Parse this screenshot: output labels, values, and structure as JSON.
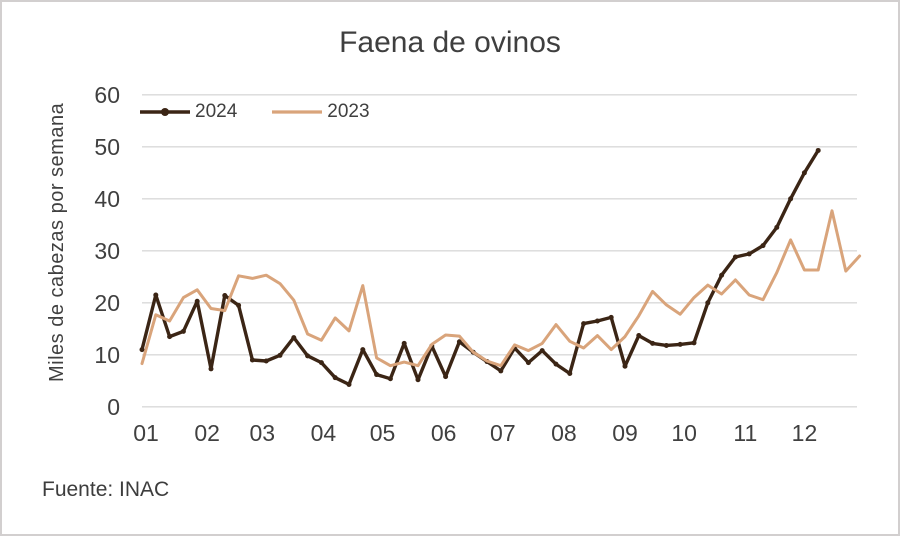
{
  "page": {
    "title": "Faena de ovinos",
    "source": "Fuente: INAC"
  },
  "axes": {
    "y_label": "Miles de cabezas por semana",
    "y_ticks": [
      "60",
      "50",
      "40",
      "30",
      "20",
      "10",
      "0"
    ],
    "x_ticks": [
      "01",
      "02",
      "03",
      "04",
      "05",
      "06",
      "07",
      "08",
      "09",
      "10",
      "11",
      "12"
    ]
  },
  "legend": {
    "items": [
      {
        "label": "2024"
      },
      {
        "label": "2023"
      }
    ]
  },
  "colors": {
    "series_2024": "#3b2515",
    "series_2023": "#d9a47b",
    "gridline": "#d9d9d9",
    "text": "#404040",
    "border": "#d2cfcf"
  },
  "chart_data": {
    "type": "line",
    "title": "Faena de ovinos",
    "ylabel": "Miles de cabezas por semana",
    "xlabel": "",
    "x_unit": "weeks of the year, x axis labeled by month 01-12",
    "ylim": [
      0,
      60
    ],
    "y_tick_step": 10,
    "grid": true,
    "legend_position": "top-left",
    "source": "Fuente: INAC",
    "series": [
      {
        "name": "2024",
        "color": "#3b2515",
        "markers": true,
        "line_width": 3.4,
        "values": [
          11,
          21.5,
          13.5,
          14.5,
          20.3,
          7.3,
          21.4,
          19.5,
          9,
          8.8,
          9.9,
          13.3,
          9.8,
          8.5,
          5.6,
          4.3,
          11,
          6.2,
          5.4,
          12.2,
          5.2,
          11.7,
          5.8,
          12.5,
          10.5,
          8.7,
          6.9,
          11.3,
          8.5,
          10.8,
          8.2,
          6.4,
          16,
          16.5,
          17.2,
          7.8,
          13.7,
          12.2,
          11.8,
          12,
          12.3,
          20,
          25.3,
          28.8,
          29.4,
          31,
          34.5,
          40,
          45,
          49.3
        ]
      },
      {
        "name": "2023",
        "color": "#d9a47b",
        "markers": false,
        "line_width": 3.0,
        "values": [
          8.3,
          17.7,
          16.5,
          21,
          22.5,
          18.9,
          18.5,
          25.2,
          24.7,
          25.3,
          23.7,
          20.5,
          14,
          12.8,
          17.1,
          14.6,
          23.3,
          9.4,
          7.9,
          8.6,
          7.9,
          12,
          13.8,
          13.6,
          10.5,
          8.8,
          7.9,
          11.9,
          10.8,
          12.2,
          15.8,
          12.6,
          11.3,
          13.7,
          11,
          13.5,
          17.5,
          22.2,
          19.6,
          17.8,
          21,
          23.4,
          21.7,
          24.4,
          21.5,
          20.6,
          25.8,
          32.1,
          26.3,
          26.3,
          37.7,
          26.1,
          29
        ]
      }
    ]
  }
}
